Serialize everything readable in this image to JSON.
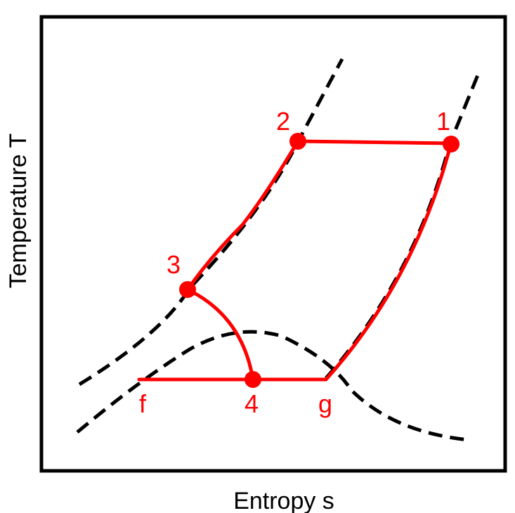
{
  "axes": {
    "xlabel": "Entropy s",
    "ylabel": "Temperature T"
  },
  "states": {
    "s1": "1",
    "s2": "2",
    "s3": "3",
    "s4": "4",
    "sf": "f",
    "sg": "g"
  },
  "colors": {
    "process": "#ff0000",
    "curves": "#000000",
    "frame": "#000000",
    "background": "#ffffff"
  }
}
